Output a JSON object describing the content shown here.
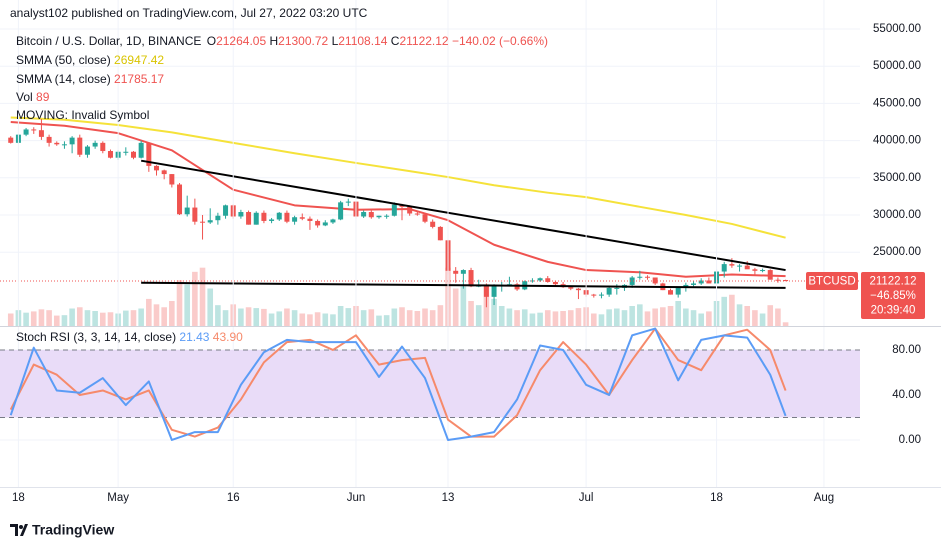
{
  "header": {
    "title": "analyst102 published on TradingView.com, Jul 27, 2022 03:20 UTC"
  },
  "legend": {
    "symbol": "Bitcoin / U.S. Dollar, 1D, BINANCE",
    "ohlc_labels": [
      "O",
      "H",
      "L",
      "C"
    ],
    "change": "−140.02 (−0.66%)",
    "vol_label": "Vol",
    "moving": "MOVING: Invalid Symbol"
  },
  "price_tag": {
    "symbol": "BTCUSD",
    "change_pct": "−46.85%",
    "countdown": "20:39:40"
  },
  "footer": {
    "brand": "TradingView"
  },
  "chart_data": [
    {
      "type": "candlestick",
      "up_color": "#26a69a",
      "down_color": "#ef5350",
      "xlim": [
        -1.4,
        110.7
      ],
      "ylim": [
        15080,
        58900
      ],
      "yticks": [
        {
          "value": 25000,
          "label": "25000.00"
        },
        {
          "value": 30000,
          "label": "30000.00"
        },
        {
          "value": 35000,
          "label": "35000.00"
        },
        {
          "value": 40000,
          "label": "40000.00"
        },
        {
          "value": 45000,
          "label": "45000.00"
        },
        {
          "value": 50000,
          "label": "50000.00"
        },
        {
          "value": 55000,
          "label": "55000.00"
        }
      ],
      "grid": true,
      "candles": [
        [
          40400,
          40600,
          39600,
          39700
        ],
        [
          39700,
          40900,
          39600,
          40800
        ],
        [
          40800,
          41700,
          40600,
          41500
        ],
        [
          41500,
          41800,
          40900,
          41400
        ],
        [
          41400,
          42900,
          40100,
          40500
        ],
        [
          40500,
          40800,
          39200,
          39700
        ],
        [
          39700,
          39900,
          39300,
          39500
        ],
        [
          39500,
          39900,
          38900,
          39500
        ],
        [
          39500,
          40600,
          38300,
          40400
        ],
        [
          40400,
          40800,
          37800,
          38100
        ],
        [
          38100,
          39400,
          37700,
          39200
        ],
        [
          39200,
          40000,
          38900,
          39700
        ],
        [
          39700,
          39900,
          38300,
          38600
        ],
        [
          38600,
          38800,
          37600,
          37700
        ],
        [
          37700,
          38700,
          37400,
          38500
        ],
        [
          38500,
          39100,
          38000,
          38500
        ],
        [
          38500,
          38600,
          37500,
          37700
        ],
        [
          37700,
          40000,
          37600,
          39700
        ],
        [
          39700,
          39800,
          35800,
          36600
        ],
        [
          36600,
          36700,
          35300,
          36000
        ],
        [
          36000,
          36100,
          34800,
          35500
        ],
        [
          35500,
          35500,
          33700,
          34100
        ],
        [
          34100,
          34300,
          30000,
          30100
        ],
        [
          30100,
          32600,
          29800,
          31000
        ],
        [
          31000,
          32200,
          28700,
          29100
        ],
        [
          29100,
          30000,
          26700,
          29000
        ],
        [
          29000,
          30900,
          28800,
          29300
        ],
        [
          29300,
          30300,
          28700,
          29900
        ],
        [
          29900,
          31400,
          29500,
          31300
        ],
        [
          31300,
          31400,
          29500,
          29800
        ],
        [
          29800,
          30700,
          29500,
          30400
        ],
        [
          30400,
          30600,
          28700,
          28700
        ],
        [
          28700,
          30500,
          28700,
          30300
        ],
        [
          30300,
          30600,
          28900,
          29200
        ],
        [
          29200,
          29600,
          28900,
          29400
        ],
        [
          29400,
          30400,
          29200,
          30300
        ],
        [
          30300,
          30600,
          28900,
          29100
        ],
        [
          29100,
          29900,
          28700,
          29700
        ],
        [
          29700,
          30200,
          29300,
          29500
        ],
        [
          29500,
          29800,
          28000,
          29200
        ],
        [
          29200,
          29400,
          28300,
          28600
        ],
        [
          28600,
          29300,
          28500,
          29000
        ],
        [
          29000,
          29500,
          28800,
          29400
        ],
        [
          29400,
          31900,
          29300,
          31700
        ],
        [
          31700,
          32200,
          31200,
          31800
        ],
        [
          31800,
          31900,
          29500,
          29800
        ],
        [
          29800,
          30600,
          29600,
          30400
        ],
        [
          30400,
          30600,
          29500,
          29700
        ],
        [
          29700,
          29900,
          29500,
          29900
        ],
        [
          29900,
          30100,
          29500,
          29900
        ],
        [
          29900,
          31700,
          29800,
          31400
        ],
        [
          31400,
          31500,
          29300,
          31100
        ],
        [
          31100,
          31300,
          29900,
          30200
        ],
        [
          30200,
          30600,
          29900,
          30100
        ],
        [
          30100,
          30300,
          28900,
          29100
        ],
        [
          29100,
          29400,
          28200,
          28400
        ],
        [
          28400,
          28500,
          26600,
          26600
        ],
        [
          26600,
          26800,
          22000,
          22500
        ],
        [
          22500,
          23000,
          20900,
          22100
        ],
        [
          22100,
          22700,
          20100,
          22600
        ],
        [
          22600,
          22900,
          20300,
          20400
        ],
        [
          20400,
          21300,
          20300,
          20500
        ],
        [
          20500,
          20800,
          17600,
          19000
        ],
        [
          19000,
          20700,
          17900,
          20600
        ],
        [
          20600,
          21000,
          19700,
          20600
        ],
        [
          20600,
          21700,
          20400,
          20700
        ],
        [
          20700,
          20900,
          19800,
          20000
        ],
        [
          20000,
          21200,
          19900,
          21100
        ],
        [
          21100,
          21500,
          20900,
          21200
        ],
        [
          21200,
          21600,
          21000,
          21500
        ],
        [
          21500,
          21800,
          20900,
          21000
        ],
        [
          21000,
          21200,
          20500,
          20700
        ],
        [
          20700,
          21000,
          20200,
          20300
        ],
        [
          20300,
          20400,
          19900,
          20100
        ],
        [
          20100,
          20200,
          18700,
          19900
        ],
        [
          19900,
          20900,
          19000,
          19300
        ],
        [
          19300,
          19400,
          18900,
          19200
        ],
        [
          19200,
          19600,
          18800,
          19300
        ],
        [
          19300,
          20400,
          19000,
          20200
        ],
        [
          20200,
          20700,
          19300,
          20200
        ],
        [
          20200,
          20700,
          19800,
          20600
        ],
        [
          20600,
          21800,
          20200,
          21600
        ],
        [
          21600,
          22500,
          21300,
          21700
        ],
        [
          21700,
          21900,
          21300,
          21600
        ],
        [
          21600,
          21600,
          20600,
          20800
        ],
        [
          20800,
          20900,
          19900,
          19900
        ],
        [
          19900,
          20100,
          19300,
          19300
        ],
        [
          19300,
          20300,
          18900,
          20200
        ],
        [
          20200,
          20900,
          19700,
          20600
        ],
        [
          20600,
          21200,
          20400,
          20800
        ],
        [
          20800,
          21500,
          20600,
          21200
        ],
        [
          21200,
          21600,
          20800,
          20800
        ],
        [
          20800,
          22700,
          20800,
          22400
        ],
        [
          22400,
          23700,
          21600,
          23400
        ],
        [
          23400,
          24200,
          22900,
          23200
        ],
        [
          23200,
          23400,
          22400,
          23200
        ],
        [
          23200,
          23800,
          22900,
          22700
        ],
        [
          22700,
          22900,
          21900,
          22500
        ],
        [
          22500,
          22800,
          22300,
          22600
        ],
        [
          22600,
          22700,
          21700,
          21300
        ],
        [
          21300,
          21600,
          20900,
          21200
        ],
        [
          21264.05,
          21300.72,
          21108.14,
          21122.12
        ]
      ],
      "vlim": [
        0,
        2400
      ],
      "volume": [
        300,
        380,
        320,
        350,
        400,
        380,
        250,
        260,
        420,
        450,
        380,
        360,
        320,
        330,
        300,
        370,
        380,
        420,
        650,
        520,
        450,
        600,
        1100,
        1000,
        1300,
        1400,
        900,
        500,
        380,
        520,
        420,
        450,
        430,
        410,
        300,
        350,
        420,
        380,
        300,
        280,
        330,
        300,
        280,
        480,
        430,
        480,
        380,
        400,
        250,
        260,
        420,
        450,
        380,
        360,
        420,
        380,
        500,
        1400,
        900,
        950,
        600,
        500,
        1000,
        650,
        480,
        420,
        380,
        400,
        300,
        320,
        380,
        350,
        360,
        380,
        430,
        450,
        300,
        280,
        400,
        420,
        380,
        480,
        520,
        350,
        420,
        450,
        480,
        600,
        420,
        380,
        300,
        350,
        600,
        700,
        750,
        520,
        480,
        380,
        300,
        500,
        420,
        89
      ],
      "series": [
        {
          "name": "SMMA (50, close)",
          "color": "#f5e23a",
          "legend_color": "#d9c400",
          "x": [
            0,
            7,
            14,
            21,
            29,
            37,
            45,
            52,
            57,
            63,
            70,
            75,
            82,
            88,
            94,
            101
          ],
          "values": [
            43100,
            42800,
            42100,
            41100,
            39700,
            38300,
            37000,
            35900,
            35100,
            34000,
            33000,
            32400,
            31100,
            30000,
            28800,
            26947.42
          ]
        },
        {
          "name": "SMMA (14, close)",
          "color": "#ef5350",
          "legend_color": "#ef5350",
          "x": [
            0,
            7,
            14,
            21,
            29,
            37,
            45,
            52,
            57,
            63,
            70,
            75,
            82,
            88,
            94,
            101
          ],
          "values": [
            42500,
            42000,
            41000,
            38700,
            33400,
            31300,
            30700,
            30800,
            29300,
            26000,
            23700,
            22600,
            22300,
            21700,
            22000,
            21785.17
          ]
        }
      ],
      "trendlines": [
        {
          "color": "#000000",
          "x": [
            17,
            101
          ],
          "values": [
            37300,
            22600
          ]
        },
        {
          "color": "#000000",
          "x": [
            17,
            101
          ],
          "values": [
            20900,
            20200
          ]
        }
      ]
    },
    {
      "type": "line",
      "title": "Stoch RSI (3, 3, 14, 14, close)",
      "xlim": [
        -1.4,
        110.7
      ],
      "ylim": [
        -41.8,
        101.3
      ],
      "xticks": [
        {
          "value": 1,
          "label": "18"
        },
        {
          "value": 14,
          "label": "May"
        },
        {
          "value": 29,
          "label": "16"
        },
        {
          "value": 45,
          "label": "Jun"
        },
        {
          "value": 57,
          "label": "13"
        },
        {
          "value": 75,
          "label": "Jul"
        },
        {
          "value": 92,
          "label": "18"
        },
        {
          "value": 106,
          "label": "Aug"
        }
      ],
      "yticks": [
        {
          "value": 0,
          "label": "0.00"
        },
        {
          "value": 40,
          "label": "40.00"
        },
        {
          "value": 80,
          "label": "80.00"
        }
      ],
      "grid": true,
      "band": [
        20,
        80
      ],
      "band_color": "#e9dcf8",
      "series": [
        {
          "color": "#5b9cf6",
          "x": [
            0,
            3,
            6,
            9,
            12,
            15,
            18,
            21,
            24,
            27,
            30,
            33,
            36,
            39,
            42,
            45,
            48,
            51,
            54,
            57,
            60,
            63,
            66,
            69,
            72,
            75,
            78,
            81,
            84,
            87,
            90,
            93,
            96,
            99,
            101
          ],
          "values": [
            22,
            82,
            44,
            42,
            55,
            31,
            52,
            0,
            7,
            7,
            49,
            78,
            89,
            87,
            87,
            87,
            56,
            83,
            55,
            0,
            3,
            7,
            36,
            84,
            80,
            49,
            40,
            93,
            99,
            53,
            89,
            93,
            91,
            58,
            21.43
          ]
        },
        {
          "color": "#f68a6b",
          "legend_label": "43.90",
          "x": [
            0,
            3,
            6,
            9,
            12,
            15,
            18,
            21,
            24,
            27,
            30,
            33,
            36,
            39,
            42,
            45,
            48,
            51,
            54,
            57,
            60,
            63,
            66,
            69,
            72,
            75,
            78,
            81,
            84,
            87,
            90,
            93,
            96,
            99,
            101
          ],
          "values": [
            27,
            67,
            58,
            40,
            44,
            36,
            44,
            9,
            3,
            11,
            36,
            69,
            87,
            89,
            80,
            93,
            67,
            71,
            73,
            18,
            3,
            3,
            22,
            62,
            87,
            67,
            40,
            71,
            99,
            71,
            62,
            93,
            98,
            80,
            43.9
          ]
        }
      ]
    }
  ]
}
